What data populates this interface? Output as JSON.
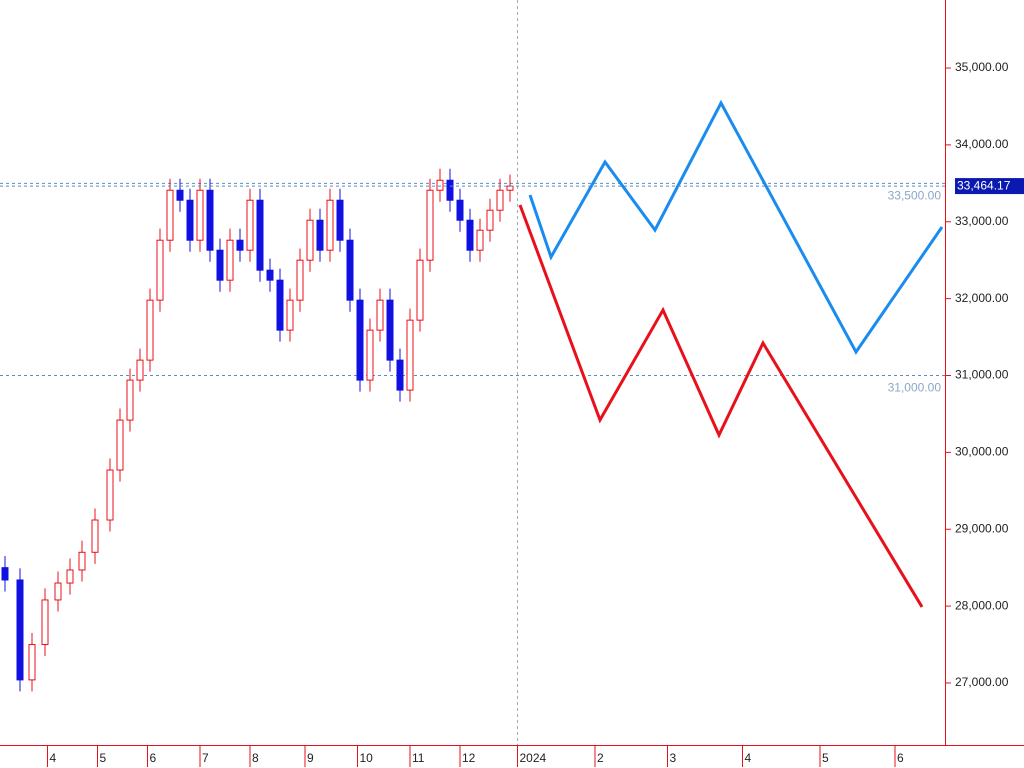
{
  "chart_data": {
    "type": "candlestick",
    "xlim": [
      0,
      378
    ],
    "ylim": [
      26193,
      35885
    ],
    "xticks": [
      {
        "value": 19,
        "label": "4"
      },
      {
        "value": 39,
        "label": "5"
      },
      {
        "value": 59,
        "label": "6"
      },
      {
        "value": 80,
        "label": "7"
      },
      {
        "value": 100,
        "label": "8"
      },
      {
        "value": 122,
        "label": "9"
      },
      {
        "value": 143,
        "label": "10"
      },
      {
        "value": 164,
        "label": "11"
      },
      {
        "value": 184,
        "label": "12"
      },
      {
        "value": 207,
        "label": "2024"
      },
      {
        "value": 238,
        "label": "2"
      },
      {
        "value": 267,
        "label": "3"
      },
      {
        "value": 297,
        "label": "4"
      },
      {
        "value": 328,
        "label": "5"
      },
      {
        "value": 358,
        "label": "6"
      }
    ],
    "yticks": [
      {
        "value": 27000,
        "label": "27,000.00"
      },
      {
        "value": 28000,
        "label": "28,000.00"
      },
      {
        "value": 29000,
        "label": "29,000.00"
      },
      {
        "value": 30000,
        "label": "30,000.00"
      },
      {
        "value": 31000,
        "label": "31,000.00"
      },
      {
        "value": 32000,
        "label": "32,000.00"
      },
      {
        "value": 33000,
        "label": "33,000.00"
      },
      {
        "value": 34000,
        "label": "34,000.00"
      },
      {
        "value": 35000,
        "label": "35,000.00"
      }
    ],
    "up_color": "#e8101a",
    "down_color": "#1010e0",
    "candles": {
      "x": [
        2,
        8,
        12.8,
        18,
        23.2,
        28,
        32.8,
        38,
        44,
        48,
        52,
        56,
        60,
        64,
        68,
        72,
        76,
        80,
        84,
        88,
        92,
        96,
        100,
        104,
        108,
        112,
        116,
        120,
        124,
        128,
        132,
        136,
        140,
        144,
        148,
        152,
        156,
        160,
        164,
        168,
        172,
        176,
        180,
        184,
        188,
        192,
        196,
        200,
        204
      ],
      "open": [
        28500,
        28340,
        27040,
        27500,
        28080,
        28300,
        28470,
        28700,
        29120,
        29770,
        30420,
        30940,
        31200,
        31980,
        32760,
        33410,
        33280,
        32760,
        33410,
        32630,
        32240,
        32760,
        32630,
        33280,
        32370,
        32240,
        31590,
        31980,
        32500,
        33020,
        32630,
        33280,
        32760,
        31980,
        30940,
        31590,
        31980,
        31200,
        30810,
        31720,
        32500,
        33410,
        33540,
        33280,
        33020,
        32630,
        32890,
        33150,
        33410
      ],
      "high": [
        28650,
        28490,
        27650,
        28230,
        28450,
        28620,
        28850,
        29270,
        29920,
        30570,
        31090,
        31350,
        32130,
        32910,
        33560,
        33560,
        33430,
        33560,
        33560,
        32780,
        32910,
        32910,
        33430,
        33430,
        32520,
        32390,
        32130,
        32650,
        33170,
        33170,
        33430,
        33430,
        32910,
        32130,
        31740,
        32130,
        32130,
        31350,
        31870,
        32650,
        33560,
        33690,
        33690,
        33430,
        33170,
        33040,
        33300,
        33560,
        33614
      ],
      "low": [
        28190,
        26890,
        26890,
        27350,
        27930,
        28150,
        28320,
        28550,
        28970,
        29620,
        30270,
        30790,
        31050,
        31830,
        32610,
        33130,
        32610,
        32610,
        32480,
        32090,
        32090,
        32480,
        32480,
        32220,
        32090,
        31440,
        31440,
        31830,
        32350,
        32480,
        32480,
        32610,
        31830,
        30790,
        30790,
        31440,
        31050,
        30660,
        30660,
        31570,
        32350,
        33260,
        33130,
        32870,
        32480,
        32480,
        32740,
        33000,
        33260
      ],
      "close": [
        28340,
        27040,
        27500,
        28080,
        28300,
        28470,
        28700,
        29120,
        29770,
        30420,
        30940,
        31200,
        31980,
        32760,
        33410,
        33280,
        32760,
        33410,
        32630,
        32240,
        32760,
        32630,
        33280,
        32370,
        32240,
        31590,
        31980,
        32500,
        33020,
        32630,
        33280,
        32760,
        31980,
        30940,
        31590,
        31980,
        31200,
        30810,
        31720,
        32500,
        33410,
        33540,
        33280,
        33020,
        32630,
        32890,
        33150,
        33410,
        33464.17
      ]
    },
    "series": [
      {
        "color": "#1a8cf0",
        "x": [
          212,
          220.4,
          242,
          262,
          288.4,
          342.4,
          376.8
        ],
        "values": [
          33348,
          32541,
          33777,
          32893,
          34545,
          31306,
          32932
        ]
      },
      {
        "color": "#e8101a",
        "x": [
          208,
          240,
          265.2,
          287.6,
          305.2,
          368.8
        ],
        "values": [
          33218,
          30421,
          31852,
          30226,
          31423,
          27989
        ]
      }
    ],
    "hlines": [
      {
        "value": 33500,
        "label": "33,500.00"
      },
      {
        "value": 31000,
        "label": "31,000.00"
      }
    ],
    "last_price": {
      "value": 33464.17,
      "label": "33,464.17"
    }
  }
}
